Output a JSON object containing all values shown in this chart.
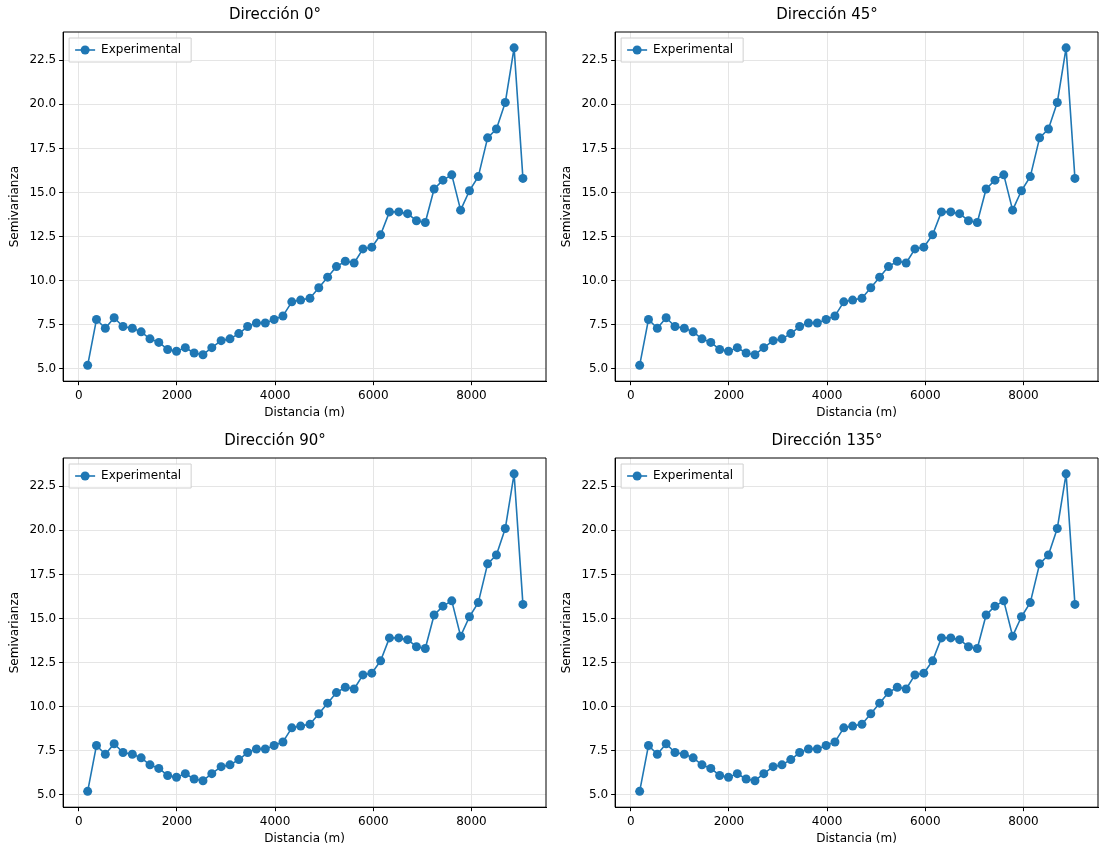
{
  "chart_data": [
    {
      "type": "line",
      "title": "Dirección 0°",
      "xlabel": "Distancia (m)",
      "ylabel": "Semivarianza",
      "x": [
        180,
        360,
        540,
        720,
        900,
        1090,
        1270,
        1450,
        1630,
        1810,
        1990,
        2170,
        2350,
        2530,
        2710,
        2900,
        3080,
        3260,
        3440,
        3620,
        3800,
        3980,
        4160,
        4340,
        4520,
        4710,
        4890,
        5070,
        5250,
        5430,
        5610,
        5790,
        5970,
        6150,
        6330,
        6520,
        6700,
        6880,
        7060,
        7240,
        7420,
        7600,
        7780,
        7960,
        8140,
        8330,
        8510,
        8690,
        8870,
        9050
      ],
      "series": [
        {
          "name": "Experimental",
          "color": "#1f77b4",
          "values": [
            5.2,
            7.8,
            7.3,
            7.9,
            7.4,
            7.3,
            7.1,
            6.7,
            6.5,
            6.1,
            6.0,
            6.2,
            5.9,
            5.8,
            6.2,
            6.6,
            6.7,
            7.0,
            7.4,
            7.6,
            7.6,
            7.8,
            8.0,
            8.8,
            8.9,
            9.0,
            9.6,
            10.2,
            10.8,
            11.1,
            11.0,
            11.8,
            11.9,
            12.6,
            13.9,
            13.9,
            13.8,
            13.4,
            13.3,
            15.2,
            15.7,
            16.0,
            14.0,
            15.1,
            15.9,
            18.1,
            18.6,
            20.1,
            23.2,
            15.8
          ]
        }
      ],
      "xlim": [
        -320,
        9520
      ],
      "ylim": [
        4.3,
        24.1
      ],
      "xticks": [
        0,
        2000,
        4000,
        6000,
        8000
      ],
      "yticks": [
        {
          "value": 5,
          "label": "5.0"
        },
        {
          "value": 7.5,
          "label": "7.5"
        },
        {
          "value": 10,
          "label": "10.0"
        },
        {
          "value": 12.5,
          "label": "12.5"
        },
        {
          "value": 15,
          "label": "15.0"
        },
        {
          "value": 17.5,
          "label": "17.5"
        },
        {
          "value": 20,
          "label": "20.0"
        },
        {
          "value": 22.5,
          "label": "22.5"
        }
      ],
      "grid": true,
      "legend": "top left",
      "marker": "circle",
      "line_style": "solid"
    },
    {
      "type": "line",
      "title": "Dirección 45°",
      "xlabel": "Distancia (m)",
      "ylabel": "Semivarianza",
      "x": [
        180,
        360,
        540,
        720,
        900,
        1090,
        1270,
        1450,
        1630,
        1810,
        1990,
        2170,
        2350,
        2530,
        2710,
        2900,
        3080,
        3260,
        3440,
        3620,
        3800,
        3980,
        4160,
        4340,
        4520,
        4710,
        4890,
        5070,
        5250,
        5430,
        5610,
        5790,
        5970,
        6150,
        6330,
        6520,
        6700,
        6880,
        7060,
        7240,
        7420,
        7600,
        7780,
        7960,
        8140,
        8330,
        8510,
        8690,
        8870,
        9050
      ],
      "series": [
        {
          "name": "Experimental",
          "color": "#1f77b4",
          "values": [
            5.2,
            7.8,
            7.3,
            7.9,
            7.4,
            7.3,
            7.1,
            6.7,
            6.5,
            6.1,
            6.0,
            6.2,
            5.9,
            5.8,
            6.2,
            6.6,
            6.7,
            7.0,
            7.4,
            7.6,
            7.6,
            7.8,
            8.0,
            8.8,
            8.9,
            9.0,
            9.6,
            10.2,
            10.8,
            11.1,
            11.0,
            11.8,
            11.9,
            12.6,
            13.9,
            13.9,
            13.8,
            13.4,
            13.3,
            15.2,
            15.7,
            16.0,
            14.0,
            15.1,
            15.9,
            18.1,
            18.6,
            20.1,
            23.2,
            15.8
          ]
        }
      ],
      "xlim": [
        -320,
        9520
      ],
      "ylim": [
        4.3,
        24.1
      ],
      "xticks": [
        0,
        2000,
        4000,
        6000,
        8000
      ],
      "yticks": [
        {
          "value": 5,
          "label": "5.0"
        },
        {
          "value": 7.5,
          "label": "7.5"
        },
        {
          "value": 10,
          "label": "10.0"
        },
        {
          "value": 12.5,
          "label": "12.5"
        },
        {
          "value": 15,
          "label": "15.0"
        },
        {
          "value": 17.5,
          "label": "17.5"
        },
        {
          "value": 20,
          "label": "20.0"
        },
        {
          "value": 22.5,
          "label": "22.5"
        }
      ],
      "grid": true,
      "legend": "top left",
      "marker": "circle",
      "line_style": "solid"
    },
    {
      "type": "line",
      "title": "Dirección 90°",
      "xlabel": "Distancia (m)",
      "ylabel": "Semivarianza",
      "x": [
        180,
        360,
        540,
        720,
        900,
        1090,
        1270,
        1450,
        1630,
        1810,
        1990,
        2170,
        2350,
        2530,
        2710,
        2900,
        3080,
        3260,
        3440,
        3620,
        3800,
        3980,
        4160,
        4340,
        4520,
        4710,
        4890,
        5070,
        5250,
        5430,
        5610,
        5790,
        5970,
        6150,
        6330,
        6520,
        6700,
        6880,
        7060,
        7240,
        7420,
        7600,
        7780,
        7960,
        8140,
        8330,
        8510,
        8690,
        8870,
        9050
      ],
      "series": [
        {
          "name": "Experimental",
          "color": "#1f77b4",
          "values": [
            5.2,
            7.8,
            7.3,
            7.9,
            7.4,
            7.3,
            7.1,
            6.7,
            6.5,
            6.1,
            6.0,
            6.2,
            5.9,
            5.8,
            6.2,
            6.6,
            6.7,
            7.0,
            7.4,
            7.6,
            7.6,
            7.8,
            8.0,
            8.8,
            8.9,
            9.0,
            9.6,
            10.2,
            10.8,
            11.1,
            11.0,
            11.8,
            11.9,
            12.6,
            13.9,
            13.9,
            13.8,
            13.4,
            13.3,
            15.2,
            15.7,
            16.0,
            14.0,
            15.1,
            15.9,
            18.1,
            18.6,
            20.1,
            23.2,
            15.8
          ]
        }
      ],
      "xlim": [
        -320,
        9520
      ],
      "ylim": [
        4.3,
        24.1
      ],
      "xticks": [
        0,
        2000,
        4000,
        6000,
        8000
      ],
      "yticks": [
        {
          "value": 5,
          "label": "5.0"
        },
        {
          "value": 7.5,
          "label": "7.5"
        },
        {
          "value": 10,
          "label": "10.0"
        },
        {
          "value": 12.5,
          "label": "12.5"
        },
        {
          "value": 15,
          "label": "15.0"
        },
        {
          "value": 17.5,
          "label": "17.5"
        },
        {
          "value": 20,
          "label": "20.0"
        },
        {
          "value": 22.5,
          "label": "22.5"
        }
      ],
      "grid": true,
      "legend": "top left",
      "marker": "circle",
      "line_style": "solid"
    },
    {
      "type": "line",
      "title": "Dirección 135°",
      "xlabel": "Distancia (m)",
      "ylabel": "Semivarianza",
      "x": [
        180,
        360,
        540,
        720,
        900,
        1090,
        1270,
        1450,
        1630,
        1810,
        1990,
        2170,
        2350,
        2530,
        2710,
        2900,
        3080,
        3260,
        3440,
        3620,
        3800,
        3980,
        4160,
        4340,
        4520,
        4710,
        4890,
        5070,
        5250,
        5430,
        5610,
        5790,
        5970,
        6150,
        6330,
        6520,
        6700,
        6880,
        7060,
        7240,
        7420,
        7600,
        7780,
        7960,
        8140,
        8330,
        8510,
        8690,
        8870,
        9050
      ],
      "series": [
        {
          "name": "Experimental",
          "color": "#1f77b4",
          "values": [
            5.2,
            7.8,
            7.3,
            7.9,
            7.4,
            7.3,
            7.1,
            6.7,
            6.5,
            6.1,
            6.0,
            6.2,
            5.9,
            5.8,
            6.2,
            6.6,
            6.7,
            7.0,
            7.4,
            7.6,
            7.6,
            7.8,
            8.0,
            8.8,
            8.9,
            9.0,
            9.6,
            10.2,
            10.8,
            11.1,
            11.0,
            11.8,
            11.9,
            12.6,
            13.9,
            13.9,
            13.8,
            13.4,
            13.3,
            15.2,
            15.7,
            16.0,
            14.0,
            15.1,
            15.9,
            18.1,
            18.6,
            20.1,
            23.2,
            15.8
          ]
        }
      ],
      "xlim": [
        -320,
        9520
      ],
      "ylim": [
        4.3,
        24.1
      ],
      "xticks": [
        0,
        2000,
        4000,
        6000,
        8000
      ],
      "yticks": [
        {
          "value": 5,
          "label": "5.0"
        },
        {
          "value": 7.5,
          "label": "7.5"
        },
        {
          "value": 10,
          "label": "10.0"
        },
        {
          "value": 12.5,
          "label": "12.5"
        },
        {
          "value": 15,
          "label": "15.0"
        },
        {
          "value": 17.5,
          "label": "17.5"
        },
        {
          "value": 20,
          "label": "20.0"
        },
        {
          "value": 22.5,
          "label": "22.5"
        }
      ],
      "grid": true,
      "legend": "top left",
      "marker": "circle",
      "line_style": "solid"
    }
  ]
}
